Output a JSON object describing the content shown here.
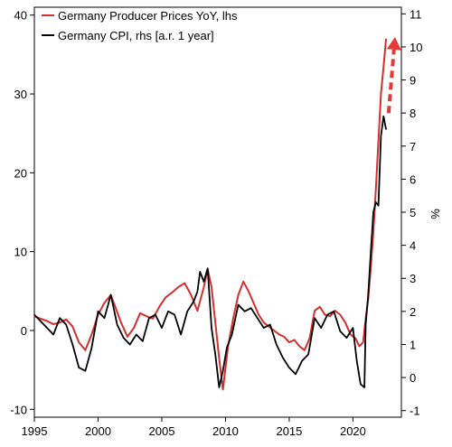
{
  "chart_data": {
    "type": "line",
    "title": "",
    "x_ticks": [
      "1995",
      "2000",
      "2005",
      "2010",
      "2015",
      "2020"
    ],
    "xlim": [
      1995,
      2023.8
    ],
    "y_left": {
      "ylim": [
        -11,
        41
      ],
      "ticks": [
        "-10",
        "0",
        "10",
        "20",
        "30",
        "40"
      ]
    },
    "y_right": {
      "label": "%",
      "ylim": [
        -1.2,
        11.2
      ],
      "ticks": [
        "-1",
        "0",
        "1",
        "2",
        "3",
        "4",
        "5",
        "6",
        "7",
        "8",
        "9",
        "10",
        "11"
      ]
    },
    "legend_position": "top-left",
    "series": [
      {
        "name": "Germany Producer Prices YoY, lhs",
        "axis": "left",
        "color": "#d32f2f",
        "x": [
          1995.0,
          1995.5,
          1996.0,
          1996.5,
          1997.0,
          1997.5,
          1998.0,
          1998.5,
          1999.0,
          1999.5,
          2000.0,
          2000.5,
          2001.0,
          2001.3,
          2001.8,
          2002.3,
          2002.8,
          2003.3,
          2003.8,
          2004.3,
          2004.8,
          2005.3,
          2005.8,
          2006.3,
          2006.8,
          2007.3,
          2007.8,
          2008.3,
          2008.6,
          2008.9,
          2009.2,
          2009.5,
          2009.8,
          2010.2,
          2010.6,
          2011.0,
          2011.4,
          2011.8,
          2012.2,
          2012.6,
          2013.0,
          2013.4,
          2013.8,
          2014.2,
          2014.6,
          2015.0,
          2015.4,
          2015.8,
          2016.2,
          2016.6,
          2017.0,
          2017.4,
          2017.8,
          2018.2,
          2018.6,
          2019.0,
          2019.4,
          2019.8,
          2020.2,
          2020.5,
          2020.8,
          2021.0,
          2021.2,
          2021.4,
          2021.6,
          2021.8,
          2022.0,
          2022.2,
          2022.4,
          2022.6
        ],
        "values": [
          1.8,
          1.5,
          1.2,
          0.8,
          1.0,
          1.4,
          0.5,
          -1.5,
          -2.5,
          -0.5,
          2.0,
          3.5,
          4.5,
          3.2,
          1.0,
          -0.8,
          0.3,
          2.2,
          1.8,
          1.5,
          3.0,
          4.2,
          4.8,
          5.5,
          6.0,
          4.5,
          2.5,
          5.5,
          7.8,
          5.5,
          1.0,
          -3.5,
          -7.5,
          -2.0,
          1.5,
          4.5,
          6.2,
          5.0,
          3.5,
          2.0,
          1.0,
          0.5,
          0.0,
          -0.5,
          -0.8,
          -1.5,
          -1.2,
          -2.0,
          -2.5,
          -1.0,
          2.5,
          3.0,
          2.0,
          1.8,
          2.5,
          2.0,
          1.0,
          -0.5,
          -1.0,
          -2.0,
          -1.5,
          1.5,
          4.0,
          8.0,
          12.5,
          18.0,
          24.0,
          30.0,
          33.5,
          37.0
        ]
      },
      {
        "name": "Germany CPI, rhs [a.r. 1 year]",
        "axis": "right",
        "color": "#000000",
        "x": [
          1995.0,
          1995.5,
          1996.0,
          1996.5,
          1997.0,
          1997.5,
          1998.0,
          1998.5,
          1999.0,
          1999.5,
          2000.0,
          2000.5,
          2001.0,
          2001.5,
          2002.0,
          2002.5,
          2003.0,
          2003.5,
          2004.0,
          2004.5,
          2005.0,
          2005.5,
          2006.0,
          2006.5,
          2007.0,
          2007.5,
          2007.8,
          2008.0,
          2008.3,
          2008.6,
          2008.9,
          2009.2,
          2009.5,
          2009.8,
          2010.1,
          2010.5,
          2011.0,
          2011.5,
          2012.0,
          2012.5,
          2013.0,
          2013.5,
          2014.0,
          2014.5,
          2015.0,
          2015.5,
          2016.0,
          2016.5,
          2017.0,
          2017.5,
          2018.0,
          2018.5,
          2019.0,
          2019.5,
          2020.0,
          2020.3,
          2020.6,
          2020.9,
          2021.0,
          2021.2,
          2021.4,
          2021.6,
          2021.8,
          2022.0,
          2022.2,
          2022.4,
          2022.6
        ],
        "values": [
          1.9,
          1.7,
          1.5,
          1.3,
          1.8,
          1.6,
          1.0,
          0.3,
          0.2,
          0.9,
          2.0,
          1.8,
          2.5,
          1.6,
          1.2,
          1.0,
          1.3,
          1.1,
          1.8,
          1.9,
          1.5,
          2.0,
          1.9,
          1.3,
          2.0,
          2.3,
          2.6,
          3.2,
          2.9,
          3.3,
          1.5,
          0.7,
          -0.3,
          0.2,
          0.9,
          1.3,
          2.2,
          2.0,
          2.1,
          1.8,
          1.5,
          1.6,
          1.0,
          0.6,
          0.3,
          0.1,
          0.5,
          0.7,
          1.8,
          1.5,
          1.9,
          2.0,
          1.4,
          1.2,
          1.5,
          0.5,
          -0.2,
          -0.3,
          1.6,
          2.5,
          3.8,
          5.0,
          5.3,
          5.2,
          7.3,
          7.9,
          7.5
        ]
      }
    ],
    "annotation": {
      "type": "arrow",
      "color": "#e53935",
      "style": "dashed",
      "x": [
        2022.8,
        2023.3
      ],
      "y_right": [
        8.0,
        10.3
      ]
    }
  }
}
